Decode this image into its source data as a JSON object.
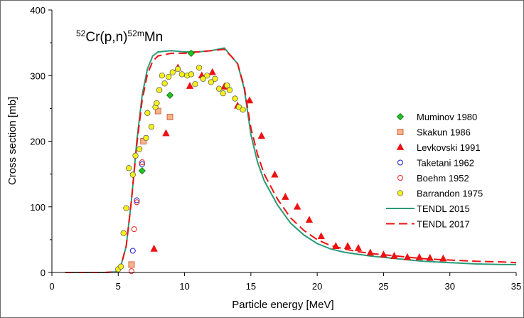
{
  "chart_data": {
    "type": "scatter",
    "reaction": {
      "mass1": "52",
      "main": "Cr(p,n)",
      "mass2": "52m",
      "product": "Mn"
    },
    "xlabel": "Particle  energy [MeV]",
    "ylabel": "Cross section [mb]",
    "xlim": [
      0,
      35
    ],
    "ylim": [
      0,
      400
    ],
    "xticks": [
      "0",
      "5",
      "10",
      "15",
      "20",
      "25",
      "30",
      "35"
    ],
    "yticks": [
      "0",
      "100",
      "200",
      "300",
      "400"
    ],
    "grid": false,
    "legend_position": "right",
    "series": [
      {
        "name": "Muminov 1980",
        "marker": "diamond",
        "color": "#22c422",
        "stroke": "#0a6a0a",
        "points": [
          [
            6.8,
            155
          ],
          [
            8.9,
            270
          ],
          [
            10.5,
            334
          ]
        ]
      },
      {
        "name": "Skakun 1986",
        "marker": "square",
        "color": "#f8b38a",
        "stroke": "#c0502a",
        "points": [
          [
            6.0,
            12
          ],
          [
            6.9,
            200
          ],
          [
            8.0,
            246
          ],
          [
            8.9,
            237
          ]
        ]
      },
      {
        "name": "Levkovski 1991",
        "marker": "triangle",
        "color": "#ee1111",
        "stroke": "#ee1111",
        "points": [
          [
            7.7,
            36
          ],
          [
            8.6,
            212
          ],
          [
            9.5,
            312
          ],
          [
            10.4,
            284
          ],
          [
            11.3,
            300
          ],
          [
            12.1,
            305
          ],
          [
            13.0,
            283
          ],
          [
            14.0,
            254
          ],
          [
            14.9,
            262
          ],
          [
            15.8,
            208
          ],
          [
            16.8,
            149
          ],
          [
            17.6,
            115
          ],
          [
            18.5,
            100
          ],
          [
            19.4,
            80
          ],
          [
            20.3,
            55
          ],
          [
            21.4,
            40
          ],
          [
            22.3,
            40
          ],
          [
            23.1,
            37
          ],
          [
            24.0,
            30
          ],
          [
            25.0,
            27
          ],
          [
            25.8,
            25
          ],
          [
            26.8,
            23
          ],
          [
            27.7,
            23
          ],
          [
            28.5,
            22
          ],
          [
            29.5,
            21
          ]
        ]
      },
      {
        "name": "Taketani 1962",
        "marker": "circle-open",
        "color": "#1c1ccc",
        "stroke": "#1c1ccc",
        "points": [
          [
            6.1,
            33
          ],
          [
            6.4,
            110
          ],
          [
            6.8,
            165
          ]
        ]
      },
      {
        "name": "Boehm 1952",
        "marker": "circle-open",
        "color": "#ee2222",
        "stroke": "#ee2222",
        "points": [
          [
            6.0,
            2
          ],
          [
            6.2,
            66
          ],
          [
            6.4,
            107
          ],
          [
            6.8,
            168
          ]
        ]
      },
      {
        "name": "Barrandon 1975",
        "marker": "circle",
        "color": "#f5f01a",
        "stroke": "#555555",
        "points": [
          [
            5.0,
            5
          ],
          [
            5.2,
            9
          ],
          [
            5.4,
            60
          ],
          [
            5.6,
            98
          ],
          [
            5.8,
            159
          ],
          [
            6.1,
            149
          ],
          [
            6.3,
            178
          ],
          [
            6.6,
            188
          ],
          [
            7.1,
            205
          ],
          [
            7.2,
            243
          ],
          [
            7.5,
            222
          ],
          [
            7.8,
            252
          ],
          [
            8.1,
            278
          ],
          [
            8.3,
            300
          ],
          [
            8.5,
            288
          ],
          [
            8.8,
            298
          ],
          [
            9.1,
            305
          ],
          [
            9.5,
            310
          ],
          [
            9.8,
            302
          ],
          [
            10.2,
            300
          ],
          [
            10.5,
            302
          ],
          [
            10.8,
            287
          ],
          [
            11.1,
            312
          ],
          [
            11.4,
            295
          ],
          [
            11.7,
            300
          ],
          [
            12.0,
            290
          ],
          [
            12.3,
            295
          ],
          [
            12.6,
            280
          ],
          [
            12.9,
            273
          ],
          [
            13.2,
            285
          ],
          [
            13.4,
            278
          ],
          [
            13.8,
            265
          ],
          [
            14.1,
            252
          ],
          [
            14.4,
            248
          ],
          [
            7.9,
            258
          ]
        ]
      },
      {
        "name": "TENDL 2015",
        "style": "solid",
        "color": "#2a9a78",
        "line": [
          [
            1,
            0
          ],
          [
            2,
            0
          ],
          [
            3,
            0
          ],
          [
            4,
            0
          ],
          [
            4.8,
            1
          ],
          [
            5.2,
            10
          ],
          [
            5.6,
            40
          ],
          [
            6.0,
            110
          ],
          [
            6.4,
            200
          ],
          [
            6.8,
            270
          ],
          [
            7.2,
            310
          ],
          [
            7.6,
            330
          ],
          [
            8.0,
            336
          ],
          [
            9.0,
            338
          ],
          [
            10,
            336
          ],
          [
            11,
            336
          ],
          [
            12,
            338
          ],
          [
            13,
            342
          ],
          [
            13.5,
            330
          ],
          [
            14,
            318
          ],
          [
            14.5,
            280
          ],
          [
            15,
            210
          ],
          [
            15.5,
            168
          ],
          [
            16,
            140
          ],
          [
            17,
            103
          ],
          [
            18,
            75
          ],
          [
            19,
            57
          ],
          [
            20,
            44
          ],
          [
            21,
            36
          ],
          [
            22,
            31
          ],
          [
            23,
            28
          ],
          [
            24,
            25
          ],
          [
            25,
            23
          ],
          [
            26,
            21
          ],
          [
            27,
            19
          ],
          [
            28,
            17
          ],
          [
            30,
            15
          ],
          [
            32,
            13
          ],
          [
            34,
            12
          ],
          [
            35,
            12
          ]
        ]
      },
      {
        "name": "TENDL 2017",
        "style": "dashed",
        "color": "#ee1111",
        "line": [
          [
            1,
            0
          ],
          [
            2,
            0
          ],
          [
            3,
            0
          ],
          [
            4,
            0
          ],
          [
            4.8,
            1
          ],
          [
            5.2,
            10
          ],
          [
            5.6,
            40
          ],
          [
            6.0,
            110
          ],
          [
            6.4,
            195
          ],
          [
            6.8,
            262
          ],
          [
            7.2,
            302
          ],
          [
            7.6,
            322
          ],
          [
            8.0,
            330
          ],
          [
            9.0,
            334
          ],
          [
            10,
            334
          ],
          [
            11,
            336
          ],
          [
            12,
            338
          ],
          [
            13,
            340
          ],
          [
            13.5,
            330
          ],
          [
            14,
            318
          ],
          [
            14.5,
            283
          ],
          [
            15,
            220
          ],
          [
            15.5,
            180
          ],
          [
            16,
            150
          ],
          [
            17,
            112
          ],
          [
            18,
            83
          ],
          [
            19,
            64
          ],
          [
            20,
            50
          ],
          [
            21,
            41
          ],
          [
            22,
            36
          ],
          [
            23,
            32
          ],
          [
            24,
            29
          ],
          [
            25,
            27
          ],
          [
            26,
            25
          ],
          [
            27,
            23
          ],
          [
            28,
            21
          ],
          [
            30,
            19
          ],
          [
            32,
            17
          ],
          [
            34,
            16
          ],
          [
            35,
            15
          ]
        ]
      }
    ]
  }
}
